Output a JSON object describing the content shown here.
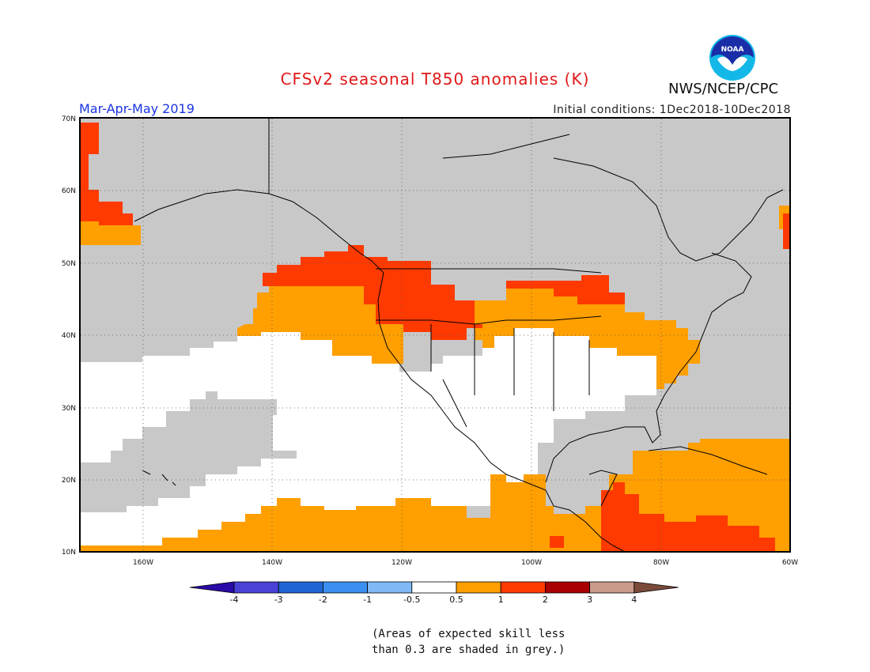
{
  "title": "CFSv2 seasonal T850 anomalies (K)",
  "season": "Mar-Apr-May 2019",
  "initial_conditions": "Initial conditions: 1Dec2018-10Dec2018",
  "agency": "NWS/NCEP/CPC",
  "logo_text": "NOAA",
  "lat_labels": [
    "70N",
    "60N",
    "50N",
    "40N",
    "30N",
    "20N",
    "10N"
  ],
  "lon_labels": [
    "160W",
    "140W",
    "120W",
    "100W",
    "80W",
    "60W"
  ],
  "colorbar": {
    "ticks": [
      "-4",
      "-3",
      "-2",
      "-1",
      "-0.5",
      "0.5",
      "1",
      "2",
      "3",
      "4"
    ],
    "colors": [
      "#2a0aa8",
      "#4a42d6",
      "#1f66d4",
      "#3b8ff0",
      "#7fb8f5",
      "#ffffff",
      "#ff9f00",
      "#ff3a00",
      "#a80000",
      "#c89a8a",
      "#7a4a3a"
    ]
  },
  "note_line1": "(Areas of expected skill less",
  "note_line2": "than 0.3 are shaded in grey.)",
  "legend_colors": {
    "grey": "#c8c8c8",
    "orange": "#ff9f00",
    "red": "#ff3a00",
    "white": "#ffffff"
  }
}
